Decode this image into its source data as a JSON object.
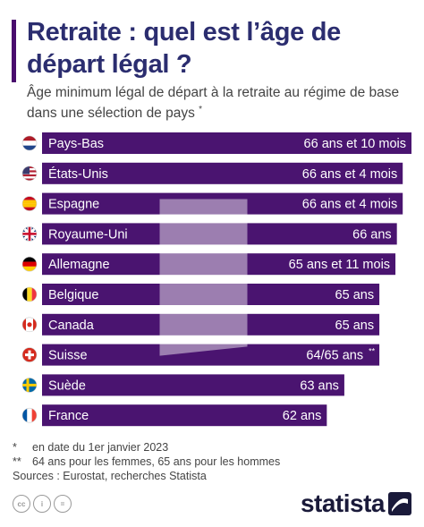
{
  "title": "Retraite : quel est l’âge de départ légal ?",
  "subtitle": "Âge minimum légal de départ à la retraite au régime de base dans une sélection de pays",
  "subtitle_mark": "*",
  "chart_data": {
    "type": "bar",
    "orientation": "horizontal",
    "categories": [
      "Pays-Bas",
      "États-Unis",
      "Espagne",
      "Royaume-Uni",
      "Allemagne",
      "Belgique",
      "Canada",
      "Suisse",
      "Suède",
      "France"
    ],
    "values": [
      66.833,
      66.333,
      66.333,
      66,
      65.917,
      65,
      65,
      65,
      63,
      62
    ],
    "value_labels": [
      "66 ans et 10 mois",
      "66 ans et 4 mois",
      "66 ans et 4 mois",
      "66 ans",
      "65 ans et 11 mois",
      "65 ans",
      "65 ans",
      "64/65 ans",
      "63 ans",
      "62 ans"
    ],
    "label_marks": [
      "",
      "",
      "",
      "",
      "",
      "",
      "",
      "**",
      "",
      ""
    ],
    "flags": [
      "netherlands-flag",
      "usa-flag",
      "spain-flag",
      "uk-flag",
      "germany-flag",
      "belgium-flag",
      "canada-flag",
      "switzerland-flag",
      "sweden-flag",
      "france-flag"
    ],
    "bar_color": "#4a1470"
  },
  "footnotes": [
    {
      "mark": "*",
      "text": "en date du 1er janvier 2023"
    },
    {
      "mark": "**",
      "text": "64 ans pour les femmes, 65 ans pour les hommes"
    },
    {
      "mark": "",
      "text": "Sources : Eurostat, recherches Statista"
    }
  ],
  "license_icons": [
    "cc-icon",
    "by-icon",
    "equals-icon"
  ],
  "license_glyphs": [
    "cc",
    "i",
    "="
  ],
  "brand": "statista",
  "colors": {
    "title": "#2b2d6f",
    "bar": "#4a1470",
    "accent": "#4a0d6e"
  }
}
